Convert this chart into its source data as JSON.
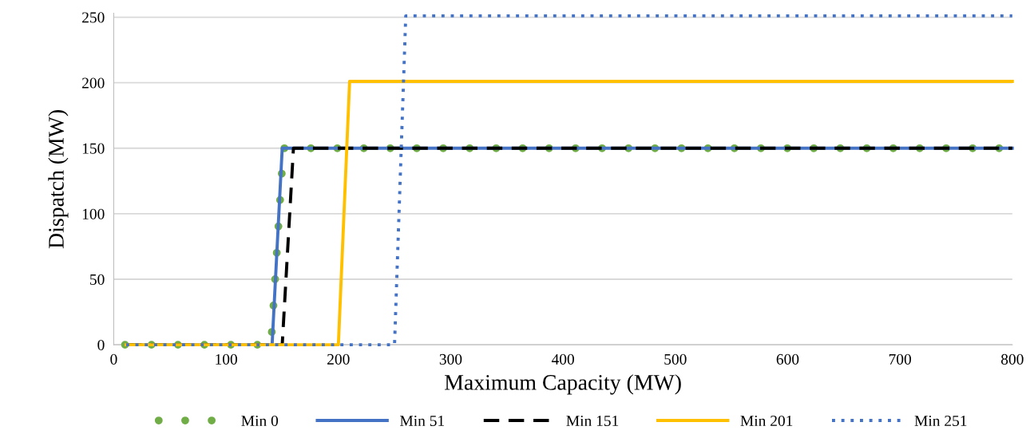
{
  "chart_data": {
    "type": "line",
    "xlabel": "Maximum Capacity (MW)",
    "ylabel": "Dispatch (MW)",
    "xlim": [
      0,
      800
    ],
    "ylim": [
      0,
      253
    ],
    "xticks": [
      0,
      100,
      200,
      300,
      400,
      500,
      600,
      700,
      800
    ],
    "yticks": [
      0,
      50,
      100,
      150,
      200,
      250
    ],
    "grid": "y",
    "legend": "bottom",
    "series": [
      {
        "name": "Min 0",
        "color": "#70ad47",
        "line_style": "dotted",
        "x": [
          10,
          140,
          151,
          800
        ],
        "values": [
          0,
          0,
          150,
          150
        ]
      },
      {
        "name": "Min 51",
        "color": "#4472c4",
        "line_style": "solid",
        "x": [
          11,
          141,
          150,
          800
        ],
        "values": [
          0,
          0,
          150,
          150
        ]
      },
      {
        "name": "Min 151",
        "color": "#000000",
        "line_style": "dashed",
        "x": [
          11,
          150,
          160,
          800
        ],
        "values": [
          0,
          0,
          150,
          150
        ]
      },
      {
        "name": "Min 201",
        "color": "#ffc000",
        "line_style": "solid",
        "x": [
          11,
          200,
          210,
          800
        ],
        "values": [
          0,
          0,
          201,
          201
        ]
      },
      {
        "name": "Min 251",
        "color": "#4472c4",
        "line_style": "dotted",
        "x": [
          11,
          250,
          260,
          800
        ],
        "values": [
          0,
          0,
          251,
          251
        ]
      }
    ]
  }
}
